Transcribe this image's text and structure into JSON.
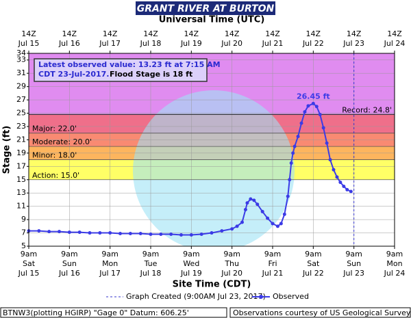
{
  "chart_data": {
    "type": "hydrograph",
    "title": "GRANT RIVER AT BURTON",
    "top_axis_title": "Universal Time (UTC)",
    "x_axis_title": "Site Time (CDT)",
    "y_axis_title": "Stage (ft)",
    "xlim": [
      "2017-07-15T09:00",
      "2017-07-24T09:00"
    ],
    "ylim": [
      5,
      34
    ],
    "yticks": [
      5,
      7,
      9,
      11,
      13,
      15,
      17,
      19,
      21,
      23,
      25,
      27,
      29,
      31,
      33,
      34
    ],
    "xticks": [
      {
        "value": "2017-07-15T09:00",
        "label": [
          "9am",
          "Sat",
          "Jul 15"
        ]
      },
      {
        "value": "2017-07-16T09:00",
        "label": [
          "9am",
          "Sun",
          "Jul 16"
        ]
      },
      {
        "value": "2017-07-17T09:00",
        "label": [
          "9am",
          "Mon",
          "Jul 17"
        ]
      },
      {
        "value": "2017-07-18T09:00",
        "label": [
          "9am",
          "Tue",
          "Jul 18"
        ]
      },
      {
        "value": "2017-07-19T09:00",
        "label": [
          "9am",
          "Wed",
          "Jul 19"
        ]
      },
      {
        "value": "2017-07-20T09:00",
        "label": [
          "9am",
          "Thu",
          "Jul 20"
        ]
      },
      {
        "value": "2017-07-21T09:00",
        "label": [
          "9am",
          "Fri",
          "Jul 21"
        ]
      },
      {
        "value": "2017-07-22T09:00",
        "label": [
          "9am",
          "Sat",
          "Jul 22"
        ]
      },
      {
        "value": "2017-07-23T09:00",
        "label": [
          "9am",
          "Sun",
          "Jul 23"
        ]
      },
      {
        "value": "2017-07-24T09:00",
        "label": [
          "9am",
          "Mon",
          "Jul 24"
        ]
      }
    ],
    "x2ticks": [
      {
        "value": "2017-07-15T09:00",
        "label": [
          "14Z",
          "Jul 15"
        ]
      },
      {
        "value": "2017-07-16T09:00",
        "label": [
          "14Z",
          "Jul 16"
        ]
      },
      {
        "value": "2017-07-17T09:00",
        "label": [
          "14Z",
          "Jul 17"
        ]
      },
      {
        "value": "2017-07-18T09:00",
        "label": [
          "14Z",
          "Jul 18"
        ]
      },
      {
        "value": "2017-07-19T09:00",
        "label": [
          "14Z",
          "Jul 19"
        ]
      },
      {
        "value": "2017-07-20T09:00",
        "label": [
          "14Z",
          "Jul 20"
        ]
      },
      {
        "value": "2017-07-21T09:00",
        "label": [
          "14Z",
          "Jul 21"
        ]
      },
      {
        "value": "2017-07-22T09:00",
        "label": [
          "14Z",
          "Jul 22"
        ]
      },
      {
        "value": "2017-07-23T09:00",
        "label": [
          "14Z",
          "Jul 23"
        ]
      },
      {
        "value": "2017-07-24T09:00",
        "label": [
          "14Z",
          "Jul 24"
        ]
      }
    ],
    "grid": true,
    "thresholds": [
      {
        "label": "Record: 24.8'",
        "value": 24.8,
        "color": "#e08cf0",
        "line_color": "#333333"
      },
      {
        "label": "Major: 22.0'",
        "value": 22,
        "color": "#ef6f8a",
        "line_color": "#555555"
      },
      {
        "label": "Moderate: 20.0'",
        "value": 20,
        "color": "#f98a72",
        "line_color": "#555555"
      },
      {
        "label": "Minor: 18.0'",
        "value": 18,
        "color": "#fdb55e",
        "line_color": "#555555"
      },
      {
        "label": "Action: 15.0'",
        "value": 15,
        "color": "#ffff66",
        "line_color": "#555555"
      }
    ],
    "info_box": {
      "line1": "Latest observed value: 13.23 ft at 7:15 AM",
      "line2a": "CDT 23-Jul-2017.",
      "line2b": "Flood Stage is 18 ft"
    },
    "created": {
      "label": "Graph Created (9:00AM Jul 23, 2017)",
      "x": "2017-07-23T09:00",
      "color": "#3333cc"
    },
    "series": [
      {
        "name": "Observed",
        "color": "#3b3be6",
        "x": [
          "2017-07-15T09:00",
          "2017-07-15T15:00",
          "2017-07-15T21:00",
          "2017-07-16T03:00",
          "2017-07-16T09:00",
          "2017-07-16T15:00",
          "2017-07-16T21:00",
          "2017-07-17T03:00",
          "2017-07-17T09:00",
          "2017-07-17T15:00",
          "2017-07-17T21:00",
          "2017-07-18T03:00",
          "2017-07-18T09:00",
          "2017-07-18T15:00",
          "2017-07-18T21:00",
          "2017-07-19T03:00",
          "2017-07-19T09:00",
          "2017-07-19T15:00",
          "2017-07-19T21:00",
          "2017-07-20T03:00",
          "2017-07-20T09:00",
          "2017-07-20T12:00",
          "2017-07-20T15:00",
          "2017-07-20T17:00",
          "2017-07-20T18:00",
          "2017-07-20T20:00",
          "2017-07-20T22:00",
          "2017-07-21T00:00",
          "2017-07-21T03:00",
          "2017-07-21T06:00",
          "2017-07-21T09:00",
          "2017-07-21T12:00",
          "2017-07-21T14:00",
          "2017-07-21T16:00",
          "2017-07-21T18:00",
          "2017-07-21T19:00",
          "2017-07-21T20:00",
          "2017-07-21T21:00",
          "2017-07-21T22:00",
          "2017-07-22T00:00",
          "2017-07-22T02:00",
          "2017-07-22T04:00",
          "2017-07-22T06:00",
          "2017-07-22T09:00",
          "2017-07-22T11:00",
          "2017-07-22T13:00",
          "2017-07-22T15:00",
          "2017-07-22T17:00",
          "2017-07-22T19:00",
          "2017-07-22T21:00",
          "2017-07-22T23:00",
          "2017-07-23T01:00",
          "2017-07-23T03:00",
          "2017-07-23T05:00",
          "2017-07-23T07:15"
        ],
        "values": [
          7.3,
          7.3,
          7.2,
          7.2,
          7.1,
          7.1,
          7.0,
          7.0,
          7.0,
          6.9,
          6.9,
          6.9,
          6.8,
          6.8,
          6.8,
          6.7,
          6.7,
          6.8,
          7.0,
          7.3,
          7.6,
          8.0,
          8.6,
          10.5,
          11.5,
          12.1,
          11.9,
          11.3,
          10.2,
          9.2,
          8.4,
          8.0,
          8.4,
          9.8,
          12.5,
          15.0,
          17.5,
          19.0,
          20.0,
          21.5,
          23.5,
          25.2,
          26.1,
          26.45,
          26.0,
          24.8,
          22.8,
          20.5,
          18.0,
          16.5,
          15.4,
          14.6,
          14.0,
          13.5,
          13.23
        ],
        "value_labels": [
          null,
          null,
          null,
          null,
          null,
          null,
          null,
          null,
          null,
          null,
          null,
          null,
          null,
          null,
          null,
          null,
          null,
          null,
          null,
          null,
          null,
          null,
          null,
          null,
          null,
          null,
          null,
          null,
          null,
          null,
          null,
          null,
          null,
          null,
          null,
          null,
          null,
          null,
          null,
          null,
          null,
          null,
          null,
          "26.45 ft",
          null,
          null,
          null,
          null,
          null,
          null,
          null,
          null,
          null,
          null,
          null
        ]
      }
    ],
    "footer_left": "BTNW3(plotting HGIRP) \"Gage 0\" Datum: 606.25'",
    "footer_right": "Observations courtesy of US Geological Survey"
  }
}
